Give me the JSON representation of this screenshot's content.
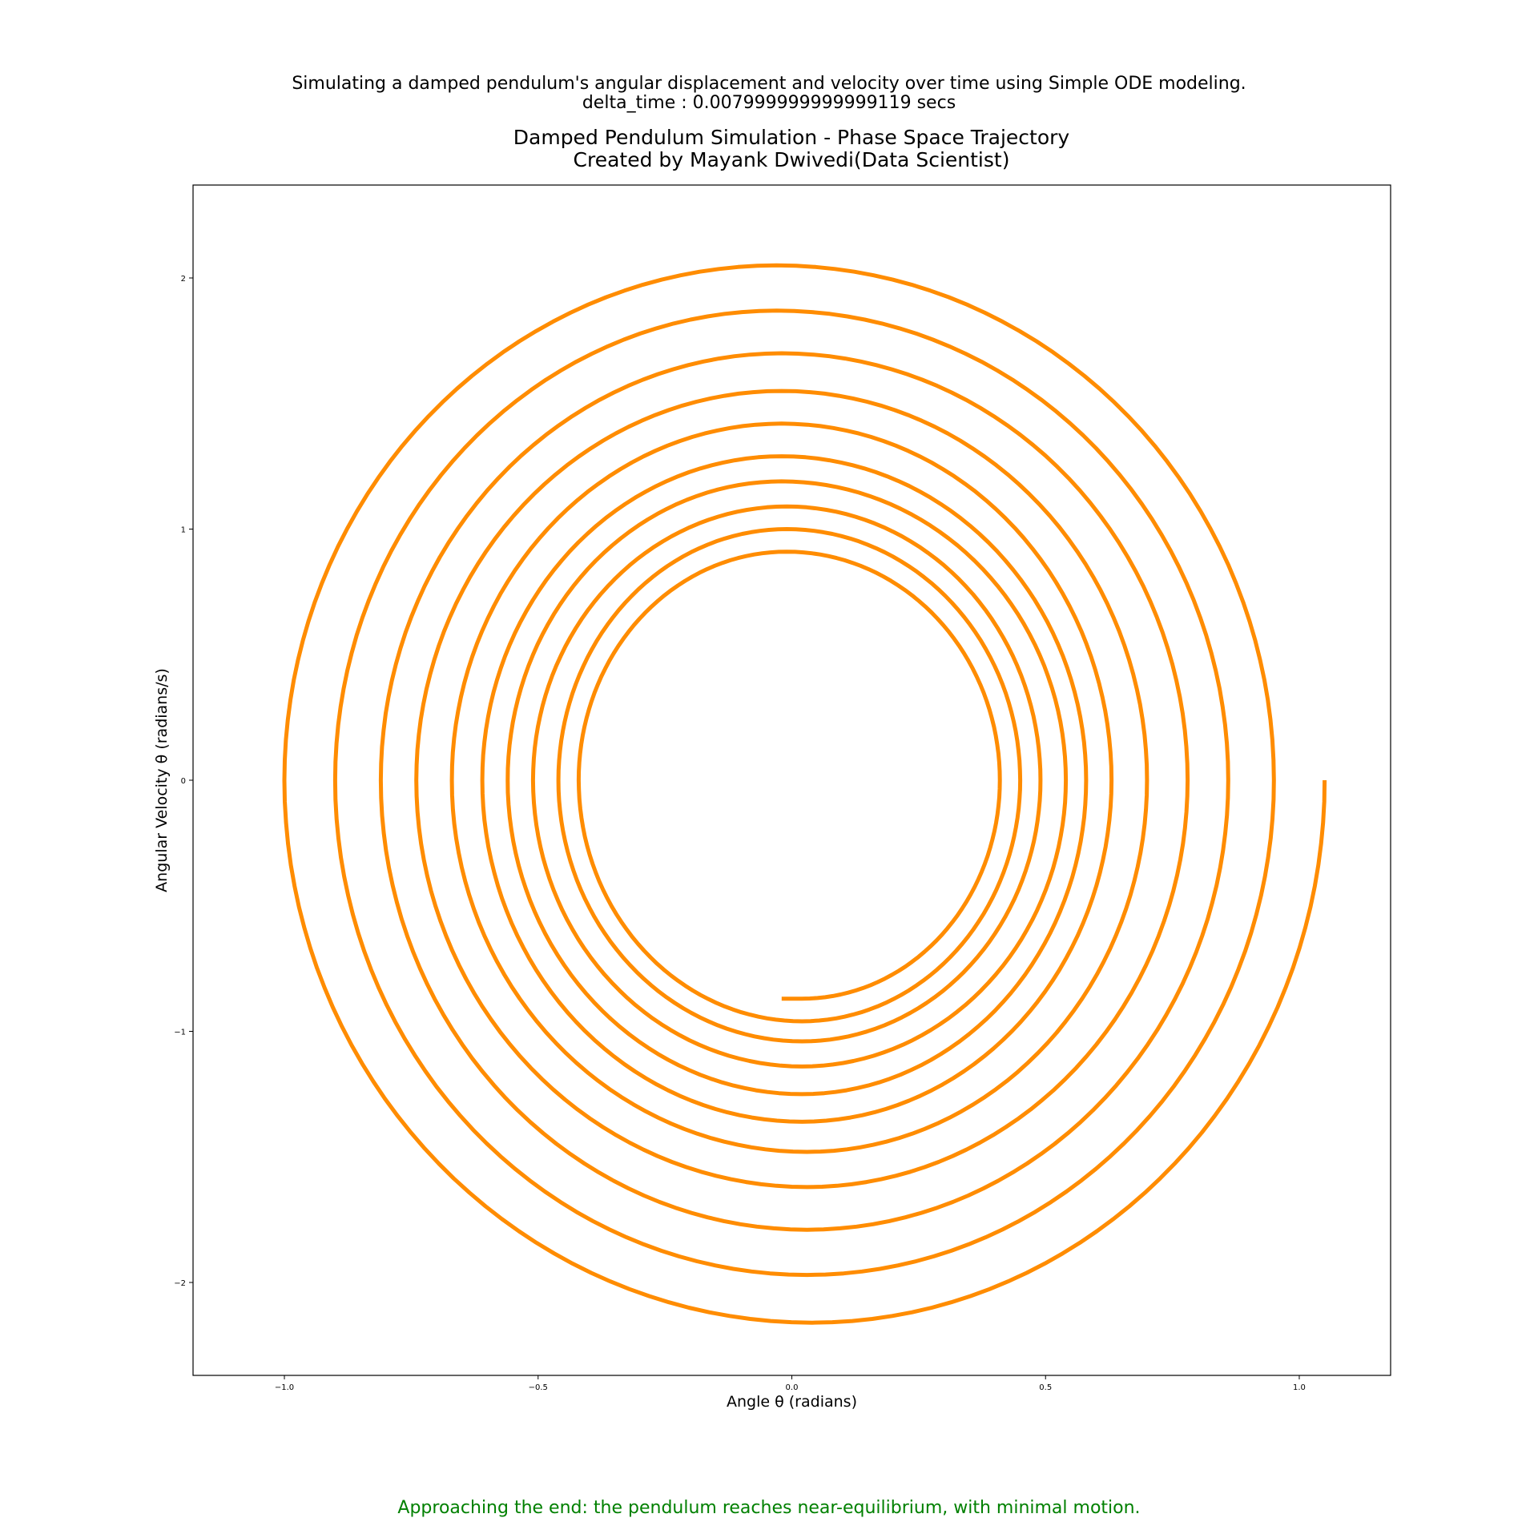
{
  "header": {
    "suptitle_line1": "Simulating a damped pendulum's angular displacement and velocity over time using Simple ODE modeling.",
    "suptitle_line2": "delta_time : 0.007999999999999119 secs"
  },
  "footer": {
    "caption": "Approaching the end: the pendulum reaches near-equilibrium, with minimal motion.",
    "caption_color": "#008000"
  },
  "chart_data": {
    "type": "line",
    "title": "Damped Pendulum Simulation - Phase Space Trajectory",
    "subtitle": "Created by Mayank Dwivedi(Data Scientist)",
    "xlabel": "Angle θ (radians)",
    "ylabel": "Angular Velocity θ (radians/s)",
    "xlim": [
      -1.18,
      1.18
    ],
    "ylim": [
      -2.37,
      2.37
    ],
    "xticks": [
      -1.0,
      -0.5,
      0.0,
      0.5,
      1.0
    ],
    "xtick_labels": [
      "−1.0",
      "−0.5",
      "0.0",
      "0.5",
      "1.0"
    ],
    "yticks": [
      -2,
      -1,
      0,
      1,
      2
    ],
    "ytick_labels": [
      "−2",
      "−1",
      "0",
      "1",
      "2"
    ],
    "grid": false,
    "series": [
      {
        "color": "#ff8c00",
        "start": {
          "theta": 1.05,
          "omega": 0.0
        },
        "end": {
          "theta": -0.02,
          "omega": -0.87
        },
        "quarter_turn_extremes": [
          {
            "omega": -2.16,
            "at_theta": 0.04
          },
          {
            "theta": -1.0,
            "at_omega": 0.0
          },
          {
            "omega": 2.05,
            "at_theta": -0.03
          },
          {
            "theta": 0.95,
            "at_omega": 0.0
          },
          {
            "omega": -1.97,
            "at_theta": 0.03
          },
          {
            "theta": -0.9,
            "at_omega": 0.0
          },
          {
            "omega": 1.87,
            "at_theta": -0.03
          },
          {
            "theta": 0.86,
            "at_omega": 0.0
          },
          {
            "omega": -1.79,
            "at_theta": 0.03
          },
          {
            "theta": -0.81,
            "at_omega": 0.0
          },
          {
            "omega": 1.7,
            "at_theta": -0.02
          },
          {
            "theta": 0.78,
            "at_omega": 0.0
          },
          {
            "omega": -1.62,
            "at_theta": 0.03
          },
          {
            "theta": -0.74,
            "at_omega": 0.0
          },
          {
            "omega": 1.55,
            "at_theta": -0.02
          },
          {
            "theta": 0.7,
            "at_omega": 0.0
          },
          {
            "omega": -1.48,
            "at_theta": 0.03
          },
          {
            "theta": -0.67,
            "at_omega": 0.0
          },
          {
            "omega": 1.42,
            "at_theta": -0.02
          },
          {
            "theta": 0.63,
            "at_omega": 0.0
          },
          {
            "omega": -1.36,
            "at_theta": 0.02
          },
          {
            "theta": -0.61,
            "at_omega": 0.0
          },
          {
            "omega": 1.29,
            "at_theta": -0.02
          },
          {
            "theta": 0.58,
            "at_omega": 0.0
          },
          {
            "omega": -1.25,
            "at_theta": 0.02
          },
          {
            "theta": -0.56,
            "at_omega": 0.0
          },
          {
            "omega": 1.19,
            "at_theta": -0.02
          },
          {
            "theta": 0.54,
            "at_omega": 0.0
          },
          {
            "omega": -1.14,
            "at_theta": 0.02
          },
          {
            "theta": -0.51,
            "at_omega": 0.0
          },
          {
            "omega": 1.09,
            "at_theta": -0.01
          },
          {
            "theta": 0.49,
            "at_omega": 0.0
          },
          {
            "omega": -1.04,
            "at_theta": 0.02
          },
          {
            "theta": -0.46,
            "at_omega": 0.0
          },
          {
            "omega": 1.0,
            "at_theta": -0.01
          },
          {
            "theta": 0.45,
            "at_omega": 0.0
          },
          {
            "omega": -0.96,
            "at_theta": 0.02
          },
          {
            "theta": -0.42,
            "at_omega": 0.0
          },
          {
            "omega": 0.91,
            "at_theta": -0.01
          },
          {
            "theta": 0.41,
            "at_omega": 0.0
          },
          {
            "omega": -0.87,
            "at_theta": 0.02
          }
        ]
      }
    ]
  }
}
